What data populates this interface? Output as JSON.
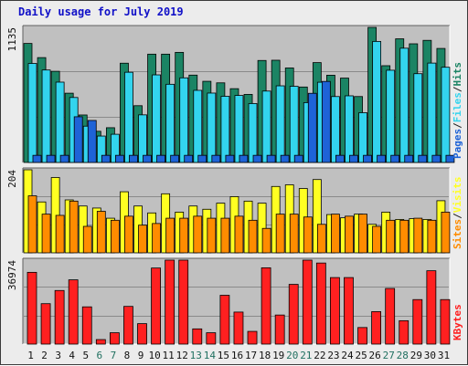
{
  "colors": {
    "hits": "#1b8464",
    "files": "#33d4ee",
    "pages": "#1e63d7",
    "visits": "#ffff22",
    "sites": "#ff8c00",
    "kbytes": "#ff2020",
    "panel_bg": "#c0c0c0",
    "frame_bg": "#ececec",
    "weekday_label": "#111111",
    "weekend_label": "#207060",
    "title": "#1010c8",
    "slash": "#222222"
  },
  "chart_data": {
    "type": "bar",
    "title": "Daily usage for July 2019",
    "categories": [
      "1",
      "2",
      "3",
      "4",
      "5",
      "6",
      "7",
      "8",
      "9",
      "10",
      "11",
      "12",
      "13",
      "14",
      "15",
      "16",
      "17",
      "18",
      "19",
      "20",
      "21",
      "22",
      "23",
      "24",
      "25",
      "26",
      "27",
      "28",
      "29",
      "30",
      "31"
    ],
    "weekend_days": [
      "6",
      "7",
      "13",
      "14",
      "20",
      "21",
      "27",
      "28"
    ],
    "panels": [
      {
        "id": "requests",
        "ymax": 1135,
        "ymax_label": "1135",
        "legend": [
          "Hits",
          "Files",
          "Pages"
        ],
        "series": [
          {
            "name": "Hits",
            "color": "#1b8464",
            "values": [
              1000,
              881,
              766,
              582,
              399,
              262,
              292,
              834,
              477,
              910,
              910,
              925,
              734,
              682,
              669,
              620,
              572,
              857,
              859,
              794,
              634,
              839,
              733,
              709,
              554,
              1135,
              813,
              1039,
              997,
              1026,
              958
            ]
          },
          {
            "name": "Files",
            "color": "#33d4ee",
            "values": [
              832,
              777,
              675,
              546,
              305,
              222,
              237,
              758,
              400,
              736,
              657,
              711,
              606,
              583,
              556,
              563,
              495,
              600,
              644,
              640,
              503,
              674,
              554,
              560,
              418,
              1017,
              775,
              960,
              746,
              835,
              800
            ]
          },
          {
            "name": "Pages",
            "color": "#1e63d7",
            "values": [
              60,
              60,
              60,
              384,
              353,
              60,
              60,
              60,
              60,
              60,
              60,
              60,
              60,
              60,
              60,
              60,
              60,
              60,
              60,
              60,
              581,
              681,
              60,
              60,
              60,
              60,
              60,
              60,
              60,
              60,
              60
            ]
          }
        ]
      },
      {
        "id": "visits",
        "ymax": 204,
        "ymax_label": "204",
        "legend": [
          "Visits",
          "Sites"
        ],
        "series": [
          {
            "name": "Visits",
            "color": "#ffff22",
            "values": [
              204,
              125,
              185,
              130,
              115,
              110,
              85,
              150,
              115,
              98,
              145,
              100,
              115,
              107,
              122,
              138,
              127,
              122,
              163,
              167,
              158,
              180,
              94,
              86,
              95,
              70,
              100,
              82,
              84,
              82,
              128
            ]
          },
          {
            "name": "Sites",
            "color": "#ff8c00",
            "values": [
              140,
              95,
              92,
              127,
              65,
              102,
              80,
              90,
              68,
              72,
              85,
              85,
              90,
              85,
              85,
              90,
              80,
              60,
              95,
              95,
              88,
              70,
              95,
              90,
              95,
              65,
              80,
              80,
              85,
              80,
              100
            ]
          }
        ]
      },
      {
        "id": "kbytes",
        "ymax": 36974,
        "ymax_label": "36974",
        "legend": [
          "KBytes"
        ],
        "series": [
          {
            "name": "KBytes",
            "color": "#ff2020",
            "values": [
              31600,
              17800,
              23600,
              28300,
              16400,
              2000,
              5000,
              16600,
              9000,
              33500,
              36974,
              36974,
              6700,
              5000,
              21500,
              14100,
              5600,
              33600,
              12800,
              26300,
              36974,
              35700,
              29300,
              29300,
              7300,
              14300,
              24500,
              10300,
              19600,
              32300,
              19600
            ]
          }
        ]
      }
    ],
    "grid": true
  }
}
